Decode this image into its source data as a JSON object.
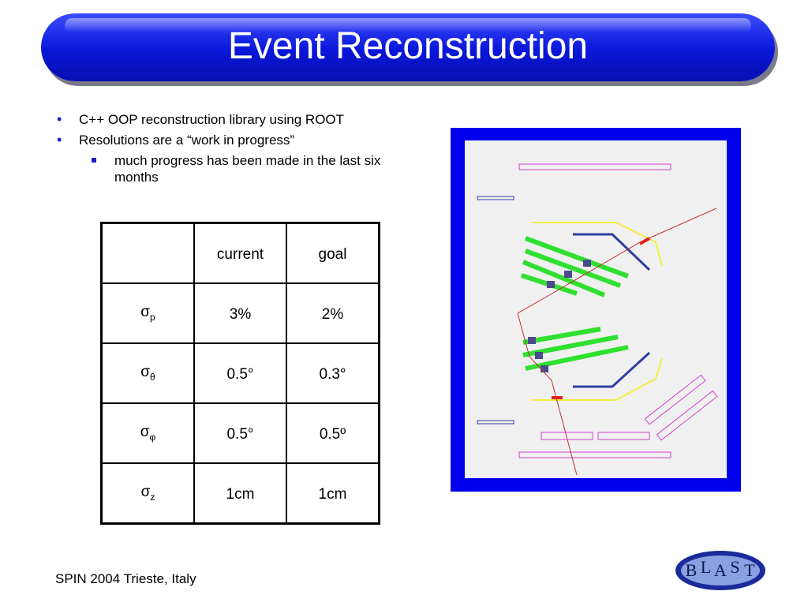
{
  "title": "Event Reconstruction",
  "bullets": [
    "C++ OOP reconstruction library using ROOT",
    "Resolutions are a “work in progress”"
  ],
  "sub_bullets": [
    "much progress has been made in the last six months"
  ],
  "table": {
    "header": [
      "current",
      "goal"
    ],
    "rows": [
      {
        "symbol": "σ",
        "sub": "p",
        "current": "3%",
        "goal": "2%"
      },
      {
        "symbol": "σ",
        "sub": "θ",
        "current": "0.5°",
        "goal": "0.3°"
      },
      {
        "symbol": "σ",
        "sub": "φ",
        "current": "0.5°",
        "goal": "0.5º"
      },
      {
        "symbol": "σ",
        "sub": "z",
        "current": "1cm",
        "goal": "1cm"
      }
    ]
  },
  "footer": "SPIN 2004 Trieste, Italy",
  "logo": [
    "B",
    "L",
    "A",
    "S",
    "T"
  ]
}
